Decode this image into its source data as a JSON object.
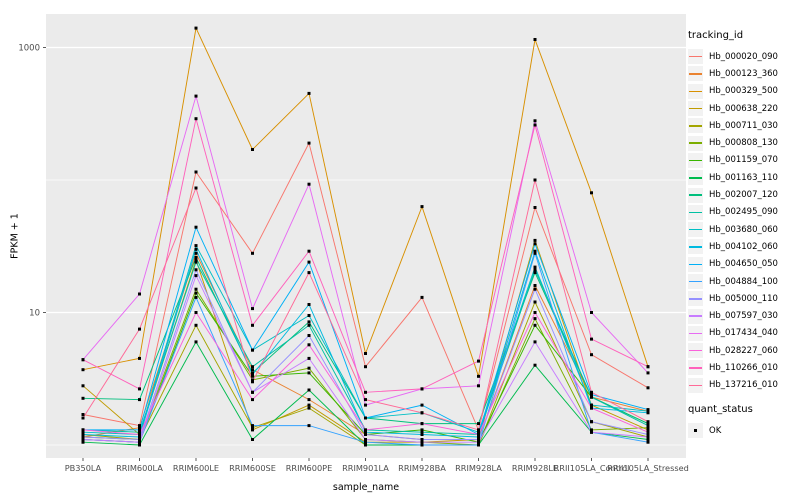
{
  "chart_data": {
    "type": "line",
    "title": "",
    "xlabel": "sample_name",
    "ylabel": "FPKM + 1",
    "y_scale": "log10",
    "ylim": [
      1,
      1790
    ],
    "y_tick_labels": [
      "10",
      "1000"
    ],
    "y_ticks": [
      10,
      1000
    ],
    "y_minor_gridlines": [
      1,
      100
    ],
    "grid": true,
    "legend_position": "right",
    "panel_bg": "#EBEBEB",
    "grid_color": "#FFFFFF",
    "axis_text_color": "#4D4D4D",
    "point_color": "#000000",
    "categories": [
      "PB350LA",
      "RRIM600LA",
      "RRIM600LE",
      "RRIM600SE",
      "RRIM600PE",
      "RRIM901LA",
      "RRIM928BA",
      "RRIM928LA",
      "RRIM928LE",
      "RRII105LA_Control",
      "RRII105LA_Stressed"
    ],
    "legend": {
      "tracking_title": "tracking_id",
      "quant_title": "quant_status",
      "quant_items": [
        {
          "label": "OK"
        }
      ]
    },
    "series": [
      {
        "name": "Hb_000020_090",
        "color": "#F8766D",
        "values": [
          1.7,
          1.4,
          115,
          28,
          190,
          3.9,
          13,
          1.3,
          62,
          4.8,
          2.7
        ]
      },
      {
        "name": "Hb_000123_360",
        "color": "#EA8331",
        "values": [
          1.15,
          1.35,
          28,
          3.7,
          2.2,
          1.2,
          1.1,
          1.1,
          16,
          2.3,
          1.8
        ]
      },
      {
        "name": "Hb_000329_500",
        "color": "#D89000",
        "values": [
          3.7,
          4.5,
          1400,
          170,
          450,
          4.9,
          63,
          3.3,
          1150,
          80,
          3.9
        ]
      },
      {
        "name": "Hb_000638_220",
        "color": "#C09B00",
        "values": [
          2.8,
          1.2,
          25,
          1.3,
          2.0,
          1.05,
          1.05,
          1.1,
          35,
          2.0,
          1.3
        ]
      },
      {
        "name": "Hb_000711_030",
        "color": "#A3A500",
        "values": [
          1.2,
          1.1,
          8,
          1.35,
          1.9,
          1.0,
          1.0,
          1.0,
          12,
          1.5,
          1.15
        ]
      },
      {
        "name": "Hb_000808_130",
        "color": "#7CAE00",
        "values": [
          1.15,
          1.1,
          15,
          3.1,
          3.8,
          1.1,
          1.05,
          1.0,
          9,
          1.3,
          1.35
        ]
      },
      {
        "name": "Hb_001159_070",
        "color": "#39B600",
        "values": [
          1.1,
          1.05,
          14,
          3.3,
          3.5,
          1.2,
          1.3,
          1.05,
          8,
          2.3,
          1.45
        ]
      },
      {
        "name": "Hb_001163_110",
        "color": "#00BB4E",
        "values": [
          1.05,
          1.0,
          6,
          1.1,
          2.6,
          1.0,
          1.0,
          1.0,
          4,
          1.25,
          1.1
        ]
      },
      {
        "name": "Hb_002007_120",
        "color": "#00BF7D",
        "values": [
          2.25,
          2.2,
          26,
          3.5,
          8.5,
          1.6,
          1.45,
          1.45,
          20,
          2.3,
          1.45
        ]
      },
      {
        "name": "Hb_002495_090",
        "color": "#00C1A3",
        "values": [
          1.3,
          1.25,
          24,
          3.9,
          8.0,
          1.3,
          1.25,
          1.2,
          21,
          2.3,
          1.4
        ]
      },
      {
        "name": "Hb_003680_060",
        "color": "#00BFC4",
        "values": [
          1.25,
          1.2,
          32,
          5.2,
          9.5,
          1.6,
          1.75,
          1.25,
          22,
          2.0,
          1.8
        ]
      },
      {
        "name": "Hb_004102_060",
        "color": "#00BAE0",
        "values": [
          1.2,
          1.15,
          30,
          3.4,
          11.5,
          1.25,
          1.2,
          1.15,
          29,
          1.9,
          1.75
        ]
      },
      {
        "name": "Hb_004650_050",
        "color": "#00B0F6",
        "values": [
          1.3,
          1.3,
          44,
          5.2,
          24,
          1.6,
          2.0,
          1.2,
          33,
          2.4,
          1.85
        ]
      },
      {
        "name": "Hb_004884_100",
        "color": "#35A2FF",
        "values": [
          1.1,
          1.05,
          13,
          1.4,
          1.4,
          1.05,
          1.0,
          1.0,
          28,
          1.25,
          1.05
        ]
      },
      {
        "name": "Hb_005000_110",
        "color": "#9590FF",
        "values": [
          1.15,
          1.1,
          21,
          2.5,
          6.7,
          1.2,
          1.1,
          1.1,
          15,
          1.5,
          1.2
        ]
      },
      {
        "name": "Hb_007597_030",
        "color": "#C77CFF",
        "values": [
          1.1,
          1.05,
          19,
          2.5,
          4.5,
          1.1,
          1.05,
          1.05,
          6,
          1.25,
          1.15
        ]
      },
      {
        "name": "Hb_017434_040",
        "color": "#E76BF3",
        "values": [
          4.4,
          13.8,
          430,
          10.7,
          93,
          2.0,
          2.65,
          2.8,
          280,
          10,
          3.5
        ]
      },
      {
        "name": "Hb_028227_060",
        "color": "#FA62DB",
        "values": [
          1.3,
          1.2,
          10,
          2.2,
          5.7,
          1.3,
          1.45,
          1.2,
          10,
          1.9,
          1.25
        ]
      },
      {
        "name": "Hb_110266_010",
        "color": "#FF62BC",
        "values": [
          4.4,
          2.65,
          290,
          8.0,
          29,
          2.5,
          2.65,
          4.3,
          260,
          6.3,
          3.9
        ]
      },
      {
        "name": "Hb_137216_010",
        "color": "#FF6A98",
        "values": [
          1.6,
          7.5,
          87,
          3.0,
          20,
          2.2,
          1.75,
          1.3,
          100,
          2.5,
          1.5
        ]
      }
    ]
  }
}
